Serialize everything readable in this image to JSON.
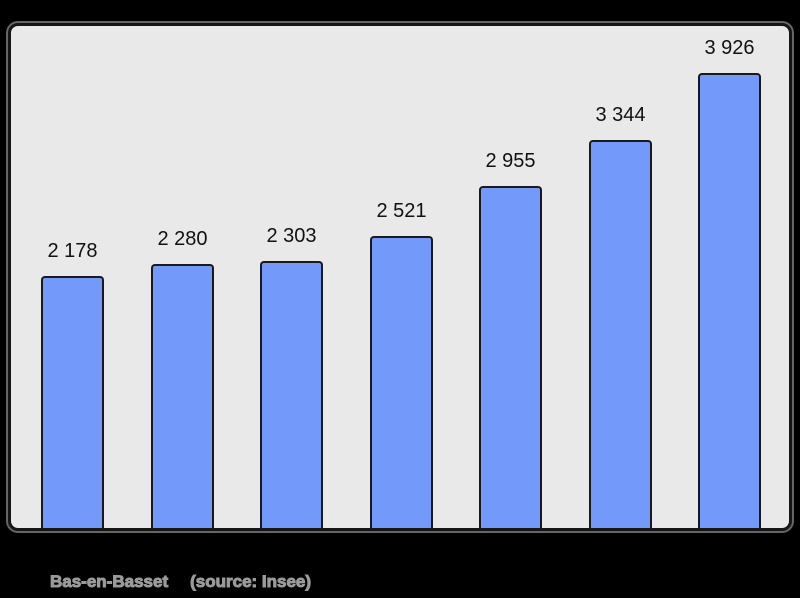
{
  "page_background": "#000000",
  "chart_data": {
    "type": "bar",
    "values": [
      2178,
      2280,
      2303,
      2521,
      2955,
      3344,
      3926
    ],
    "value_labels": [
      "2 178",
      "2 280",
      "2 303",
      "2 521",
      "2 955",
      "3 344",
      "3 926"
    ],
    "axes_visible": false,
    "grid": false,
    "legend": false,
    "data_labels_visible": true,
    "bar_color": "#7399fa",
    "bar_border_color": "#1a1a1a",
    "plot_background": "#e9e9e9",
    "frame_border_color": "#151515",
    "value_label_color": "#111111"
  },
  "caption": {
    "commune": "Bas-en-Basset",
    "source": "(source: Insee)",
    "color": "#9a9a9a"
  }
}
